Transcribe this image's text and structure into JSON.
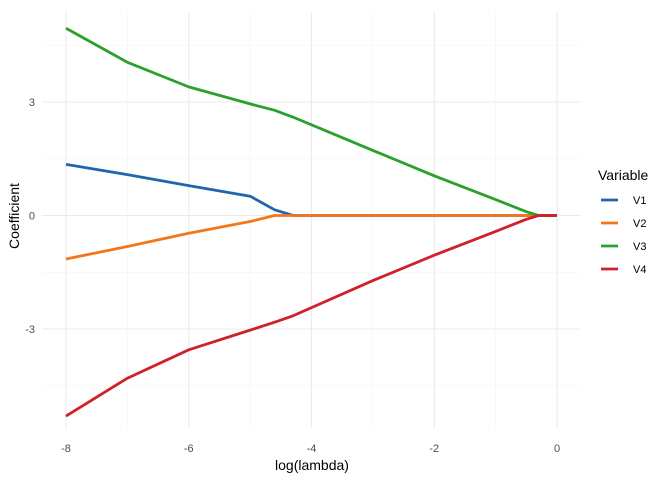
{
  "chart_data": {
    "type": "line",
    "title": "",
    "xlabel": "log(lambda)",
    "ylabel": "Coefficient",
    "xlim": [
      -8.0,
      0.0
    ],
    "ylim": [
      -5.55,
      5.25
    ],
    "x_ticks": [
      -8,
      -6,
      -4,
      -2,
      0
    ],
    "y_ticks": [
      -3,
      0,
      3
    ],
    "grid": true,
    "legend": {
      "title": "Variable",
      "placement": "right"
    },
    "series": [
      {
        "name": "V1",
        "color": "#2166ac",
        "points": [
          [
            -8.0,
            1.35
          ],
          [
            -7.0,
            1.08
          ],
          [
            -6.0,
            0.79
          ],
          [
            -5.0,
            0.51
          ],
          [
            -4.6,
            0.15
          ],
          [
            -4.3,
            0.0
          ],
          [
            0.0,
            0.0
          ]
        ]
      },
      {
        "name": "V2",
        "color": "#f4761b",
        "points": [
          [
            -8.0,
            -1.15
          ],
          [
            -7.0,
            -0.82
          ],
          [
            -6.0,
            -0.47
          ],
          [
            -5.0,
            -0.16
          ],
          [
            -4.6,
            0.0
          ],
          [
            0.0,
            0.0
          ]
        ]
      },
      {
        "name": "V3",
        "color": "#2ca02c",
        "points": [
          [
            -8.0,
            4.95
          ],
          [
            -7.0,
            4.05
          ],
          [
            -6.0,
            3.4
          ],
          [
            -5.0,
            2.95
          ],
          [
            -4.6,
            2.78
          ],
          [
            -4.3,
            2.6
          ],
          [
            -3.0,
            1.72
          ],
          [
            -2.0,
            1.05
          ],
          [
            -1.0,
            0.42
          ],
          [
            -0.5,
            0.1
          ],
          [
            -0.3,
            0.0
          ],
          [
            0.0,
            0.0
          ]
        ]
      },
      {
        "name": "V4",
        "color": "#d0202a",
        "points": [
          [
            -8.0,
            -5.3
          ],
          [
            -7.0,
            -4.3
          ],
          [
            -6.0,
            -3.55
          ],
          [
            -5.0,
            -3.03
          ],
          [
            -4.6,
            -2.82
          ],
          [
            -4.3,
            -2.65
          ],
          [
            -3.0,
            -1.72
          ],
          [
            -2.0,
            -1.05
          ],
          [
            -1.0,
            -0.42
          ],
          [
            -0.5,
            -0.1
          ],
          [
            -0.3,
            0.0
          ],
          [
            0.0,
            0.0
          ]
        ]
      }
    ]
  }
}
